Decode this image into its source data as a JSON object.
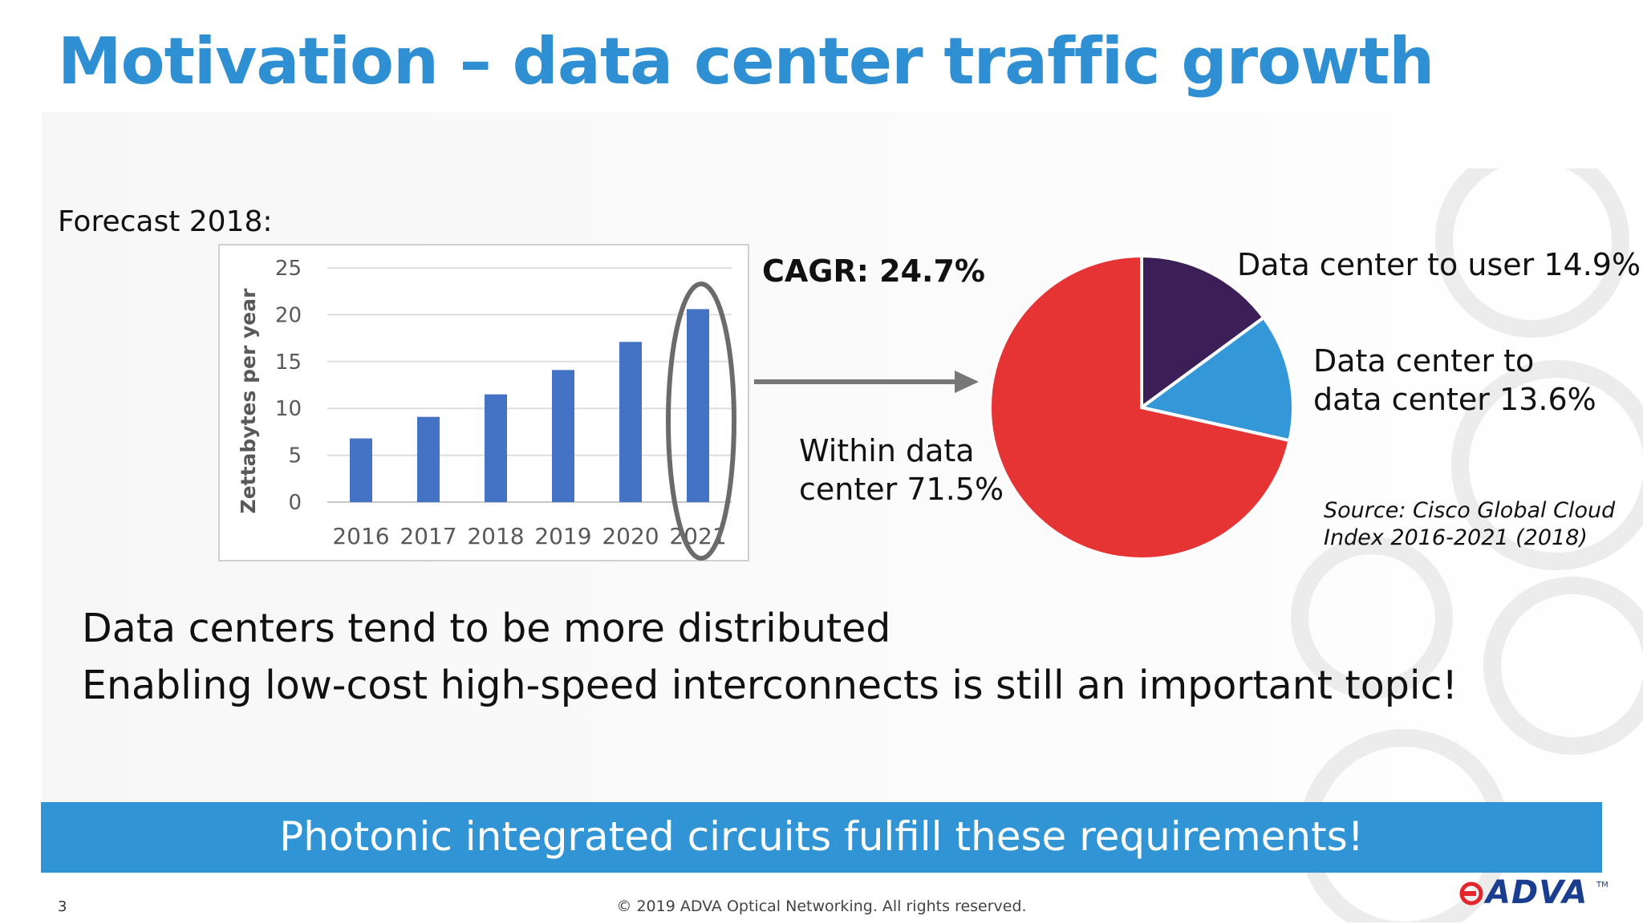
{
  "title": "Motivation – data center traffic growth",
  "forecast_label": "Forecast 2018:",
  "cagr": "CAGR: 24.7%",
  "pie_labels": {
    "user": "Data center to user 14.9%",
    "dc_line1": "Data center to",
    "dc_line2": "data center 13.6%",
    "within_line1": "Within data",
    "within_line2": "center 71.5%"
  },
  "source_line1": "Source: Cisco Global Cloud",
  "source_line2": "Index 2016-2021 (2018)",
  "body_line1": "Data centers tend to be more distributed",
  "body_line2": "Enabling low-cost high-speed interconnects is still an important topic!",
  "banner": "Photonic integrated circuits fulfill these requirements!",
  "page_number": "3",
  "copyright": "© 2019 ADVA Optical Networking. All rights reserved.",
  "logo_text": "ADVA",
  "logo_tm": "TM",
  "colors": {
    "title": "#2f8fd3",
    "bar": "#4472c4",
    "banner": "#3195d5",
    "pie_within": "#e63334",
    "pie_user": "#3b1f56",
    "pie_dc": "#3497d7",
    "logo_red": "#e3262c",
    "logo_blue": "#1a3d8f"
  },
  "chart_data": [
    {
      "type": "bar",
      "categories": [
        "2016",
        "2017",
        "2018",
        "2019",
        "2020",
        "2021"
      ],
      "values": [
        6.8,
        9.1,
        11.5,
        14.1,
        17.1,
        20.6
      ],
      "ylabel": "Zettabytes per year",
      "ylim": [
        0,
        25
      ],
      "yticks": [
        0,
        5,
        10,
        15,
        20,
        25
      ],
      "grid": true,
      "highlight": "2021"
    },
    {
      "type": "pie",
      "slices": [
        {
          "label": "Data center to user",
          "value": 14.9,
          "color": "#3b1f56"
        },
        {
          "label": "Data center to data center",
          "value": 13.6,
          "color": "#3497d7"
        },
        {
          "label": "Within data center",
          "value": 71.5,
          "color": "#e63334"
        }
      ]
    }
  ]
}
